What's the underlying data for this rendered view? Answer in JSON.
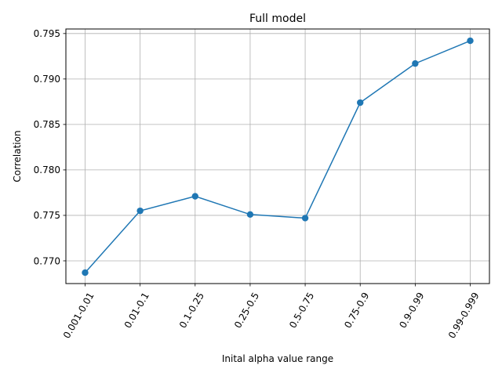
{
  "chart_data": {
    "type": "line",
    "title": "Full model",
    "xlabel": "Inital alpha value range",
    "ylabel": "Correlation",
    "categories": [
      "0.001-0.01",
      "0.01-0.1",
      "0.1-0.25",
      "0.25-0.5",
      "0.5-0.75",
      "0.75-0.9",
      "0.9-0.99",
      "0.99-0.999"
    ],
    "series": [
      {
        "values": [
          0.7687,
          0.7755,
          0.7771,
          0.7751,
          0.7747,
          0.7874,
          0.7917,
          0.7942
        ],
        "color": "#1f77b4",
        "marker": "circle"
      }
    ],
    "yticks": [
      "0.770",
      "0.775",
      "0.780",
      "0.785",
      "0.790",
      "0.795"
    ],
    "ylim": [
      0.7675,
      0.7955
    ],
    "grid": true,
    "grid_color": "#b0b0b0"
  }
}
